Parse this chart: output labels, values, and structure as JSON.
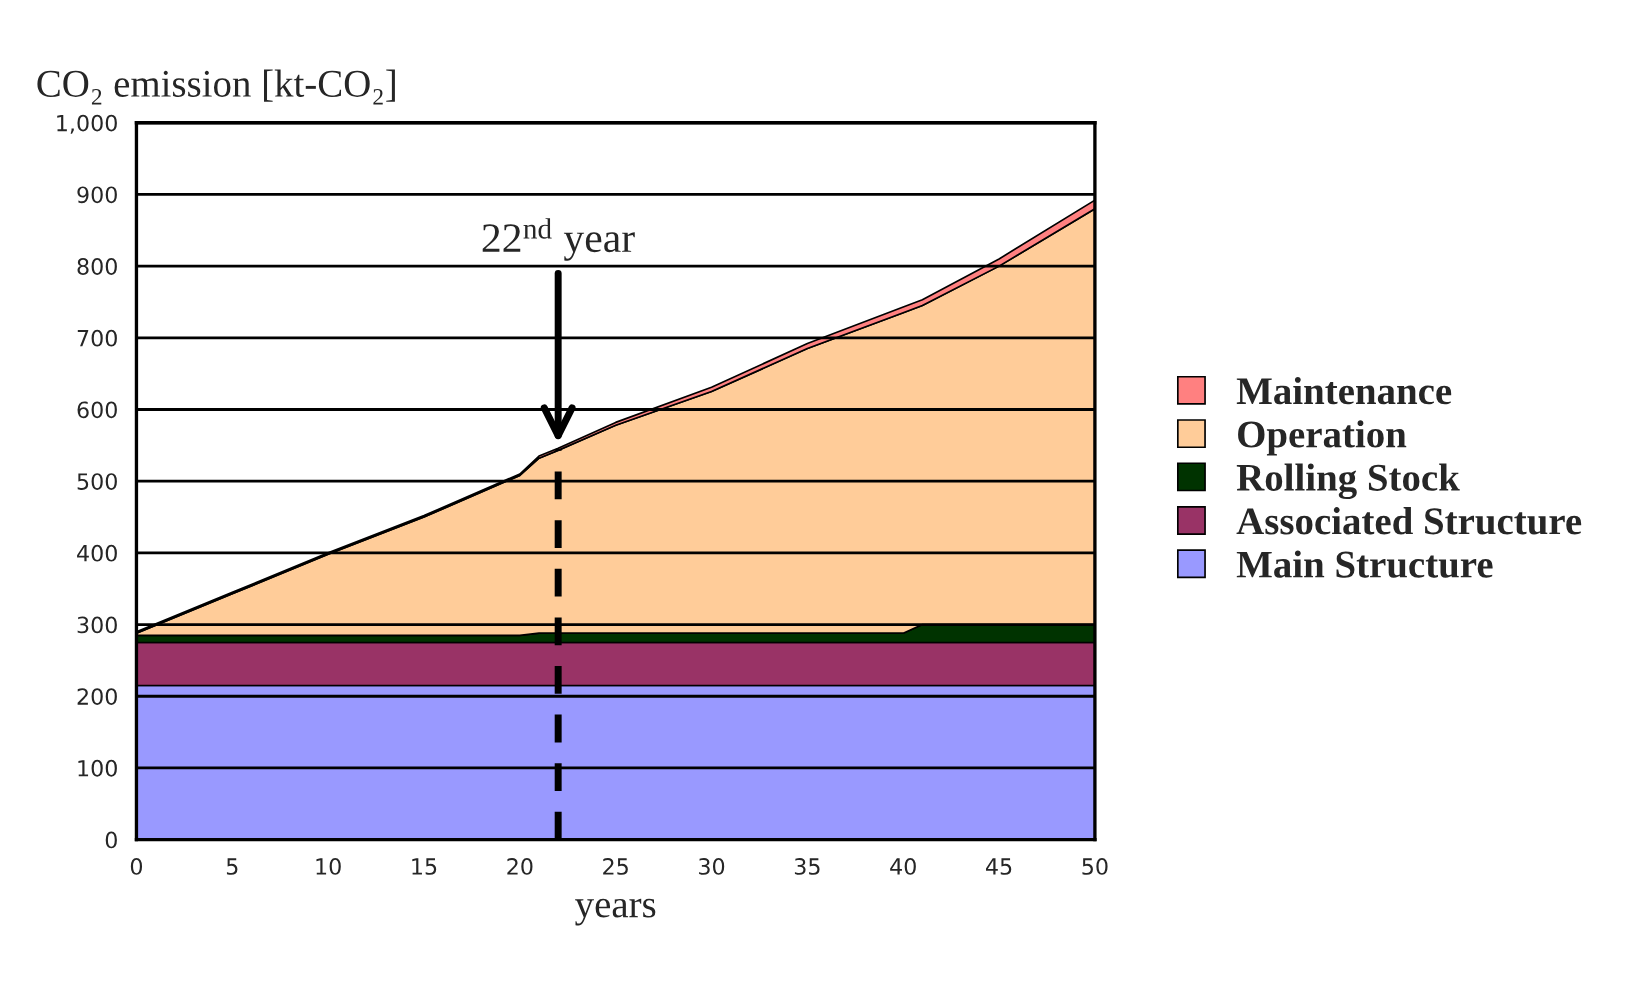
{
  "chart_data": {
    "type": "area",
    "stacked": true,
    "ylabel": "CO₂ emission [kt-CO₂]",
    "xlabel": "years",
    "x": [
      0,
      5,
      10,
      15,
      20,
      21,
      22,
      25,
      30,
      35,
      40,
      41,
      45,
      50
    ],
    "series": [
      {
        "name": "Main Structure",
        "color": "#9999ff",
        "values": [
          215,
          215,
          215,
          215,
          215,
          215,
          215,
          215,
          215,
          215,
          215,
          215,
          215,
          215
        ]
      },
      {
        "name": "Associated Structure",
        "color": "#993366",
        "values": [
          60,
          60,
          60,
          60,
          60,
          60,
          60,
          60,
          60,
          60,
          60,
          60,
          60,
          60
        ]
      },
      {
        "name": "Rolling Stock",
        "color": "#003300",
        "values": [
          10,
          10,
          10,
          10,
          10,
          13,
          13,
          13,
          13,
          13,
          13,
          25,
          25,
          25
        ]
      },
      {
        "name": "Operation",
        "color": "#ffcc99",
        "values": [
          3,
          58,
          113,
          165,
          223,
          244,
          255,
          290,
          337,
          397,
          447,
          445,
          500,
          580
        ]
      },
      {
        "name": "Maintenance",
        "color": "#ff8080",
        "values": [
          2,
          2,
          2,
          2,
          2,
          3,
          3,
          4,
          6,
          7,
          8,
          8,
          10,
          12
        ]
      }
    ],
    "xlim": [
      0,
      50
    ],
    "xticks": [
      0,
      5,
      10,
      15,
      20,
      25,
      30,
      35,
      40,
      45,
      50
    ],
    "ylim": [
      0,
      1000
    ],
    "yticks": [
      0,
      100,
      200,
      300,
      400,
      500,
      600,
      700,
      800,
      900,
      {
        "value": 1000,
        "label": "1,000"
      }
    ],
    "grid": "y",
    "legend": "right",
    "ref_lines": [
      {
        "axis": "x",
        "value": 22,
        "line_style": "dashed",
        "color": "#000000"
      }
    ],
    "annotations": [
      {
        "text": "22$^{nd}$ year",
        "x": 22,
        "y": 545
      }
    ]
  }
}
